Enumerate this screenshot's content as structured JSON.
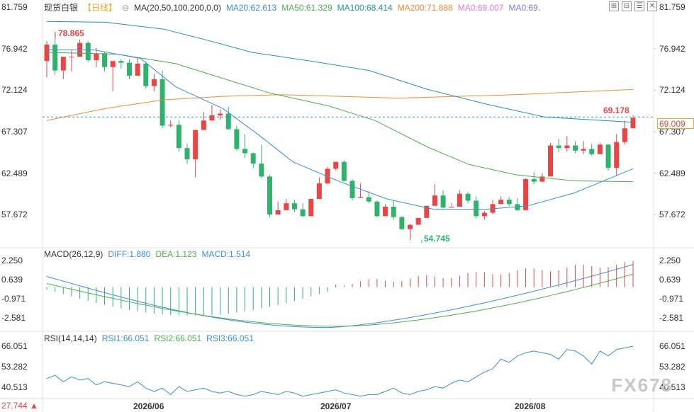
{
  "legend": {
    "main_title": "现货白银",
    "period": "【日线】",
    "gear": "⊖",
    "ma_prefix": "MA(20,50,100,200,0,0)",
    "ma_items": [
      {
        "text": "MA20:62.613",
        "color": "#3a8fd9"
      },
      {
        "text": "MA50:61.329",
        "color": "#4caf50"
      },
      {
        "text": "MA100:68.414",
        "color": "#2196a0"
      },
      {
        "text": "MA200:71.888",
        "color": "#f08c33"
      },
      {
        "text": "MA0:69.007",
        "color": "#e07bd0"
      },
      {
        "text": "MA0:69.",
        "color": "#7a78e0"
      }
    ],
    "macd_prefix": "MACD(26,12,9)",
    "macd_items": [
      {
        "text": "DIFF:1.880",
        "color": "#3a8fd9"
      },
      {
        "text": "DEA:1.123",
        "color": "#4caf50"
      },
      {
        "text": "MACD:1.514",
        "color": "#3a8fd9"
      }
    ],
    "rsi_prefix": "RSI(14,14,14)",
    "rsi_items": [
      {
        "text": "RSI1:66.051",
        "color": "#3a8fd9"
      },
      {
        "text": "RSI2:66.051",
        "color": "#4caf50"
      },
      {
        "text": "RSI3:66.051",
        "color": "#3a8fd9"
      }
    ]
  },
  "toolbar": {
    "icons": [
      "expand-icon",
      "shrink-icon",
      "list-icon",
      "close-icon"
    ],
    "glyphs": [
      "⊞",
      "⊟",
      "☰",
      "✕"
    ]
  },
  "price_axis": {
    "ticks": [
      "81.759",
      "76.942",
      "72.124",
      "67.307",
      "62.489",
      "57.672"
    ]
  },
  "macd_axis": {
    "ticks": [
      "2.250",
      "0.639",
      "-0.971",
      "-2.581"
    ]
  },
  "rsi_axis": {
    "ticks": [
      "66.051",
      "53.282",
      "40.513"
    ]
  },
  "x_axis": {
    "ticks": [
      "2026/06",
      "2026/07",
      "2026/08"
    ]
  },
  "markers": {
    "high": "78.865",
    "low": "54.745",
    "last": "69.178"
  },
  "current_price": "69.009",
  "watermark": "FX678",
  "bottom_left": {
    "value": "27.744",
    "arrow": "▲"
  },
  "colors": {
    "up": "#e84545",
    "down": "#2fb36c",
    "ma20": "#3a8fd9",
    "ma50": "#4caf50",
    "ma100": "#2196a0",
    "ma200": "#f08c33"
  },
  "chart_data": {
    "type": "candlestick",
    "price_range": [
      54.0,
      81.759
    ],
    "candles_ohlc": [
      [
        75.5,
        77.8,
        73.6,
        77.4
      ],
      [
        77.4,
        78.9,
        73.9,
        74.4
      ],
      [
        74.4,
        75.5,
        73.4,
        76.0
      ],
      [
        76.0,
        76.8,
        74.3,
        76.0
      ],
      [
        76.0,
        78.0,
        76.5,
        77.6
      ],
      [
        77.6,
        77.8,
        75.4,
        75.6
      ],
      [
        75.6,
        77.0,
        74.8,
        76.4
      ],
      [
        76.4,
        76.6,
        74.3,
        74.8
      ],
      [
        74.8,
        75.0,
        72.0,
        75.5
      ],
      [
        75.5,
        75.7,
        74.6,
        75.3
      ],
      [
        75.3,
        75.7,
        73.4,
        73.8
      ],
      [
        73.8,
        75.8,
        74.1,
        75.2
      ],
      [
        75.2,
        75.4,
        72.3,
        72.6
      ],
      [
        72.6,
        74.0,
        72.0,
        73.4
      ],
      [
        73.4,
        74.4,
        67.7,
        68.0
      ],
      [
        68.0,
        68.6,
        67.8,
        68.1
      ],
      [
        68.1,
        68.6,
        65.0,
        65.4
      ],
      [
        65.4,
        65.9,
        63.6,
        64.1
      ],
      [
        64.1,
        65.1,
        62.0,
        67.5
      ],
      [
        67.5,
        69.6,
        67.8,
        68.6
      ],
      [
        68.6,
        70.4,
        68.6,
        69.2
      ],
      [
        69.2,
        69.9,
        68.7,
        69.4
      ],
      [
        69.4,
        70.2,
        67.5,
        67.6
      ],
      [
        67.6,
        68.0,
        65.1,
        65.3
      ],
      [
        65.3,
        67.0,
        64.2,
        64.8
      ],
      [
        64.8,
        64.9,
        63.1,
        63.6
      ],
      [
        63.6,
        65.8,
        61.9,
        62.1
      ],
      [
        62.1,
        62.3,
        57.4,
        57.7
      ],
      [
        57.7,
        59.2,
        58.0,
        58.2
      ],
      [
        58.2,
        59.5,
        58.3,
        59.0
      ],
      [
        59.0,
        59.4,
        58.0,
        58.3
      ],
      [
        58.3,
        59.0,
        57.4,
        57.5
      ],
      [
        57.5,
        58.2,
        58.0,
        59.5
      ],
      [
        59.5,
        62.0,
        59.6,
        61.3
      ],
      [
        61.3,
        63.2,
        61.2,
        63.0
      ],
      [
        63.0,
        63.8,
        62.8,
        63.8
      ],
      [
        63.8,
        64.0,
        61.5,
        61.6
      ],
      [
        61.6,
        61.8,
        59.3,
        59.6
      ],
      [
        59.6,
        61.3,
        59.6,
        59.7
      ],
      [
        59.7,
        60.4,
        59.0,
        59.2
      ],
      [
        59.2,
        59.3,
        57.4,
        57.5
      ],
      [
        57.5,
        58.9,
        58.1,
        58.6
      ],
      [
        58.6,
        59.3,
        57.1,
        57.4
      ],
      [
        57.4,
        57.5,
        55.9,
        56.0
      ],
      [
        56.0,
        56.6,
        54.7,
        56.5
      ],
      [
        56.5,
        57.0,
        56.8,
        57.3
      ],
      [
        57.3,
        58.7,
        57.6,
        58.7
      ],
      [
        58.7,
        61.2,
        58.9,
        59.9
      ],
      [
        59.9,
        60.5,
        58.4,
        58.5
      ],
      [
        58.5,
        59.0,
        58.7,
        58.6
      ],
      [
        58.6,
        60.5,
        59.1,
        60.1
      ],
      [
        60.1,
        60.3,
        59.0,
        59.3
      ],
      [
        59.3,
        59.8,
        57.2,
        57.5
      ],
      [
        57.5,
        58.1,
        57.1,
        57.9
      ],
      [
        57.9,
        59.4,
        57.7,
        58.9
      ],
      [
        58.9,
        59.8,
        59.1,
        59.4
      ],
      [
        59.4,
        59.7,
        58.7,
        58.9
      ],
      [
        58.9,
        59.6,
        58.1,
        58.2
      ],
      [
        58.2,
        61.9,
        60.0,
        61.8
      ],
      [
        61.8,
        62.6,
        61.2,
        61.5
      ],
      [
        61.5,
        62.5,
        61.5,
        62.1
      ],
      [
        62.1,
        66.0,
        62.8,
        65.7
      ],
      [
        65.7,
        66.5,
        64.9,
        65.4
      ],
      [
        65.4,
        66.8,
        65.0,
        65.7
      ],
      [
        65.7,
        66.2,
        64.8,
        65.1
      ],
      [
        65.1,
        66.2,
        64.7,
        65.3
      ],
      [
        65.3,
        65.9,
        64.5,
        64.7
      ],
      [
        64.7,
        66.0,
        65.1,
        65.8
      ],
      [
        65.8,
        65.9,
        62.8,
        63.1
      ],
      [
        63.1,
        67.0,
        62.2,
        66.1
      ],
      [
        66.1,
        68.6,
        65.8,
        67.7
      ],
      [
        67.7,
        69.2,
        68.1,
        68.9
      ]
    ],
    "ma20_last": 62.613,
    "ma50_last": 61.329,
    "ma100_last": 68.414,
    "ma200_last": 71.888,
    "macd": {
      "range": [
        -3.6,
        2.6
      ],
      "diff_last": 1.88,
      "dea_last": 1.123,
      "macd_last": 1.514
    },
    "rsi": {
      "range": [
        34,
        70
      ],
      "last": 66.051
    }
  }
}
